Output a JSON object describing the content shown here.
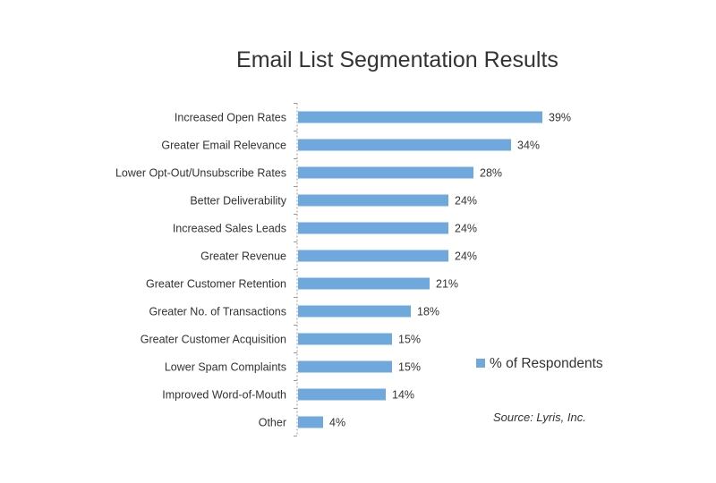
{
  "chart_data": {
    "type": "bar",
    "orientation": "horizontal",
    "title": "Email List Segmentation Results",
    "categories": [
      "Increased Open Rates",
      "Greater Email Relevance",
      "Lower Opt-Out/Unsubscribe Rates",
      "Better Deliverability",
      "Increased Sales Leads",
      "Greater Revenue",
      "Greater Customer Retention",
      "Greater No. of Transactions",
      "Greater Customer Acquisition",
      "Lower Spam Complaints",
      "Improved Word-of-Mouth",
      "Other"
    ],
    "series": [
      {
        "name": "% of Respondents",
        "values": [
          39,
          34,
          28,
          24,
          24,
          24,
          21,
          18,
          15,
          15,
          14,
          4
        ],
        "labels": [
          "39%",
          "34%",
          "28%",
          "24%",
          "24%",
          "24%",
          "21%",
          "18%",
          "15%",
          "15%",
          "14%",
          "4%"
        ]
      }
    ],
    "xlim": [
      0,
      40
    ],
    "grid": false,
    "legend_position": "right",
    "annotations": [
      "Source: Lyris, Inc."
    ],
    "colors": {
      "bar": "#6fa8dc",
      "axis": "#999999",
      "text": "#333333"
    }
  }
}
